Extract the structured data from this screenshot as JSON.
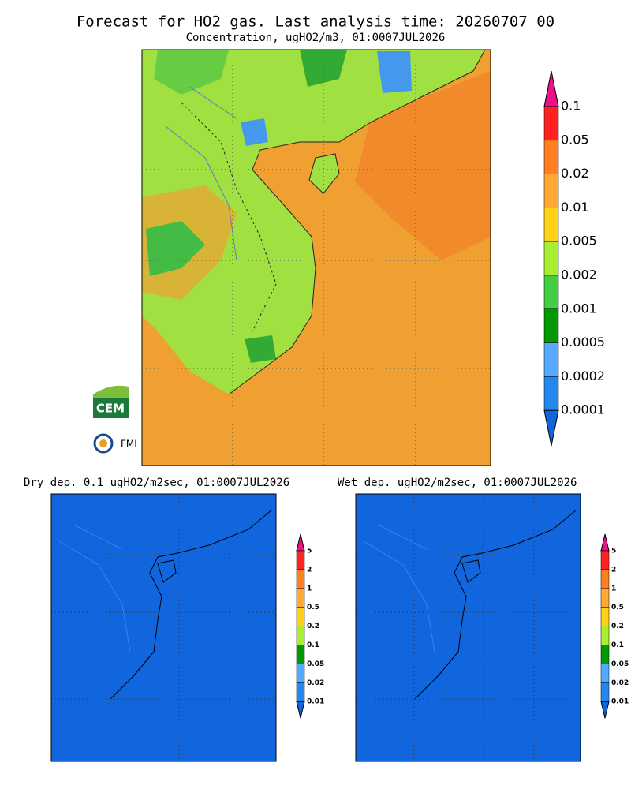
{
  "header": {
    "title": "Forecast for HO2 gas. Last analysis time: 20260707 00",
    "subtitle": "Concentration, ugHO2/m3, 01:0007JUL2026"
  },
  "main_map": {
    "colorbar": {
      "labels": [
        "0.1",
        "0.05",
        "0.02",
        "0.01",
        "0.005",
        "0.002",
        "0.001",
        "0.0005",
        "0.0002",
        "0.0001"
      ],
      "colors": [
        "#ee1188",
        "#ff2222",
        "#ff7f22",
        "#ffaa33",
        "#ffd21a",
        "#aaee33",
        "#44cc44",
        "#009900",
        "#55aaff",
        "#2288ee",
        "#1166dd"
      ]
    }
  },
  "logos": {
    "cem": "CEM",
    "fmi": "FMI"
  },
  "panels": [
    {
      "title": "Dry dep. 0.1 ugHO2/m2sec, 01:0007JUL2026",
      "colorbar": {
        "labels": [
          "5",
          "2",
          "1",
          "0.5",
          "0.2",
          "0.1",
          "0.05",
          "0.02",
          "0.01"
        ],
        "colors": [
          "#ee1188",
          "#ff2222",
          "#ff7f22",
          "#ffaa33",
          "#ffd21a",
          "#aaee33",
          "#009900",
          "#55aaff",
          "#2288ee",
          "#1166dd"
        ]
      }
    },
    {
      "title": "Wet dep. ugHO2/m2sec, 01:0007JUL2026",
      "colorbar": {
        "labels": [
          "5",
          "2",
          "1",
          "0.5",
          "0.2",
          "0.1",
          "0.05",
          "0.02",
          "0.01"
        ],
        "colors": [
          "#ee1188",
          "#ff2222",
          "#ff7f22",
          "#ffaa33",
          "#ffd21a",
          "#aaee33",
          "#009900",
          "#55aaff",
          "#2288ee",
          "#1166dd"
        ]
      }
    }
  ]
}
